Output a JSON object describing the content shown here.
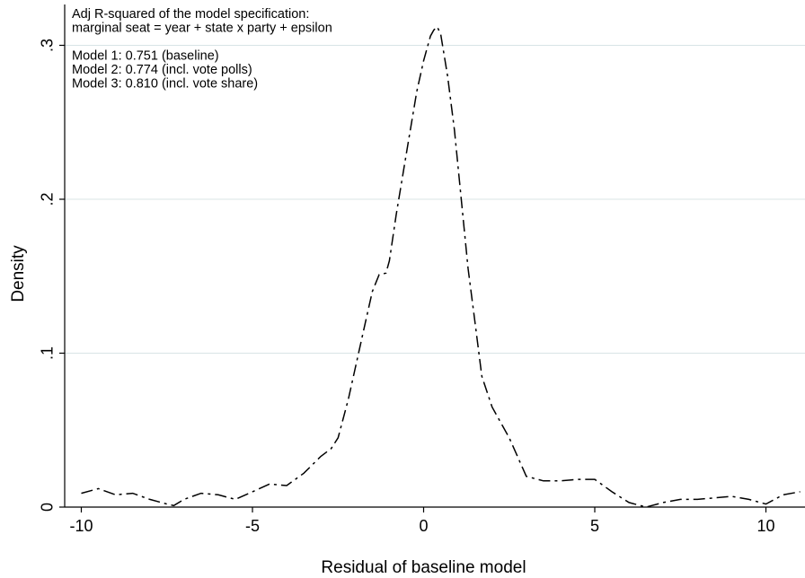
{
  "chart_data": {
    "type": "line",
    "xlabel": "Residual of baseline model",
    "ylabel": "Density",
    "xlim": [
      -10,
      11
    ],
    "ylim": [
      0,
      0.315
    ],
    "x_ticks": [
      -10,
      -5,
      0,
      5,
      10
    ],
    "x_tick_labels": [
      "-10",
      "-5",
      "0",
      "5",
      "10"
    ],
    "y_ticks": [
      0,
      0.1,
      0.2,
      0.3
    ],
    "y_tick_labels": [
      "0",
      ".1",
      ".2",
      ".3"
    ],
    "grid": "horizontal",
    "legend": "none",
    "line_style": "dash-dot",
    "line_color": "#000000",
    "annotations": [
      "Adj R-squared of the model specification:",
      "marginal seat = year + state x party + epsilon",
      "",
      "Model 1: 0.751 (baseline)",
      "Model 2: 0.774 (incl. vote polls)",
      "Model 3: 0.810 (incl. vote share)"
    ],
    "series": [
      {
        "x": [
          -10,
          -9.5,
          -9,
          -8.5,
          -8,
          -7.5,
          -7.3,
          -7,
          -6.5,
          -6,
          -5.5,
          -5,
          -4.5,
          -4,
          -3.5,
          -3,
          -2.7,
          -2.5,
          -2.2,
          -2,
          -1.7,
          -1.5,
          -1.3,
          -1.1,
          -1,
          -0.8,
          -0.5,
          -0.2,
          0,
          0.2,
          0.3,
          0.4,
          0.5,
          0.7,
          0.9,
          1.1,
          1.3,
          1.5,
          1.7,
          2,
          2.5,
          3,
          3.5,
          4,
          4.5,
          5,
          5.5,
          6,
          6.5,
          7,
          7.5,
          8,
          8.5,
          9,
          9.5,
          10,
          10.5,
          11
        ],
        "y": [
          0.009,
          0.012,
          0.008,
          0.009,
          0.005,
          0.002,
          0.001,
          0.005,
          0.009,
          0.008,
          0.005,
          0.01,
          0.015,
          0.014,
          0.022,
          0.033,
          0.038,
          0.045,
          0.07,
          0.09,
          0.12,
          0.14,
          0.151,
          0.152,
          0.16,
          0.19,
          0.23,
          0.27,
          0.29,
          0.306,
          0.31,
          0.312,
          0.307,
          0.28,
          0.245,
          0.2,
          0.155,
          0.12,
          0.085,
          0.065,
          0.045,
          0.02,
          0.017,
          0.017,
          0.018,
          0.018,
          0.01,
          0.003,
          0,
          0.003,
          0.005,
          0.005,
          0.006,
          0.007,
          0.005,
          0.002,
          0.008,
          0.01
        ]
      }
    ]
  }
}
